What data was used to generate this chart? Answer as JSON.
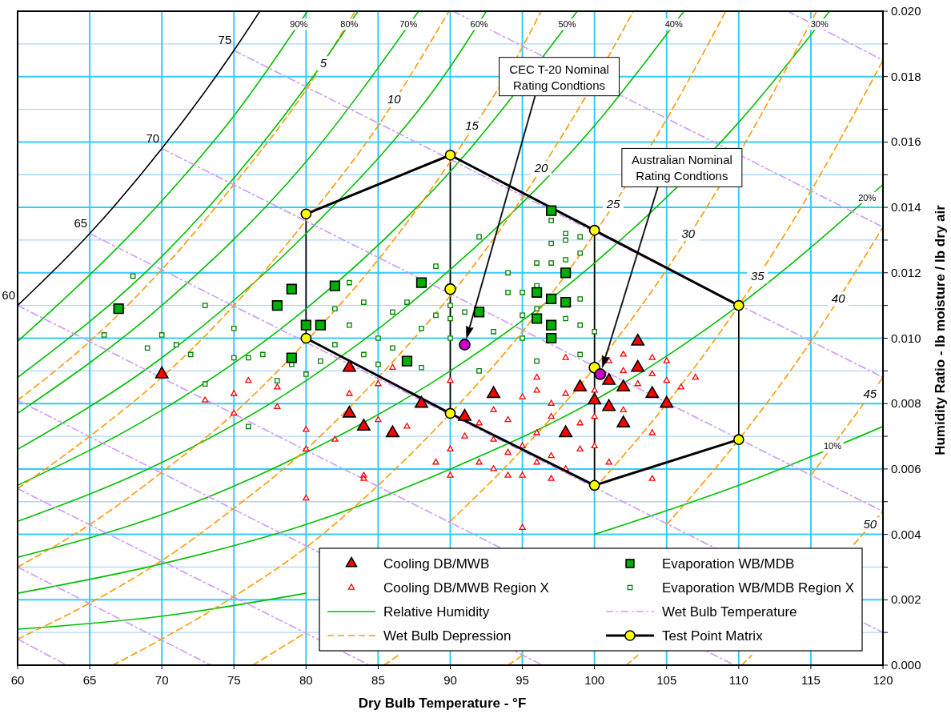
{
  "chart_data": {
    "type": "line",
    "xlabel": "Dry Bulb Temperature - °F",
    "ylabel": "Humidity Ratio - lb moisture / lb dry air",
    "xlim": [
      60,
      120
    ],
    "ylim": [
      0,
      0.02
    ],
    "xticks": [
      60,
      65,
      70,
      75,
      80,
      85,
      90,
      95,
      100,
      105,
      110,
      115,
      120
    ],
    "yticks": [
      {
        "value": 0,
        "label": "0.000"
      },
      {
        "value": 0.001,
        "label": null
      },
      {
        "value": 0.002,
        "label": "0.002"
      },
      {
        "value": 0.003,
        "label": null
      },
      {
        "value": 0.004,
        "label": "0.004"
      },
      {
        "value": 0.005,
        "label": null
      },
      {
        "value": 0.006,
        "label": "0.006"
      },
      {
        "value": 0.007,
        "label": null
      },
      {
        "value": 0.008,
        "label": "0.008"
      },
      {
        "value": 0.009,
        "label": null
      },
      {
        "value": 0.01,
        "label": "0.010"
      },
      {
        "value": 0.011,
        "label": null
      },
      {
        "value": 0.012,
        "label": "0.012"
      },
      {
        "value": 0.013,
        "label": null
      },
      {
        "value": 0.014,
        "label": "0.014"
      },
      {
        "value": 0.015,
        "label": null
      },
      {
        "value": 0.016,
        "label": "0.016"
      },
      {
        "value": 0.017,
        "label": null
      },
      {
        "value": 0.018,
        "label": "0.018"
      },
      {
        "value": 0.019,
        "label": null
      },
      {
        "value": 0.02,
        "label": "0.020"
      }
    ],
    "grid": true,
    "legend": "bottom right",
    "series": [
      {
        "type": "scatter",
        "name": "Cooling DB/MWB",
        "color": "#ff0000",
        "marker": "triangle",
        "x": [
          70,
          83,
          83,
          84,
          86,
          88,
          91,
          93,
          98,
          99,
          100,
          101,
          101,
          102,
          102,
          103,
          103,
          104,
          105
        ],
        "values": [
          0.0089,
          0.0091,
          0.0077,
          0.0073,
          0.0071,
          0.008,
          0.0076,
          0.0083,
          0.0071,
          0.0085,
          0.0081,
          0.0087,
          0.0079,
          0.0085,
          0.0074,
          0.0099,
          0.0091,
          0.0083,
          0.008
        ]
      },
      {
        "type": "scatter",
        "name": "Evaporation WB/MDB",
        "color": "#00b000",
        "marker": "square",
        "x": [
          67,
          78,
          79,
          79,
          80,
          81,
          82,
          87,
          88,
          92,
          96,
          96,
          97,
          97,
          97,
          97,
          98,
          98
        ],
        "values": [
          0.0109,
          0.011,
          0.0115,
          0.0094,
          0.0104,
          0.0104,
          0.0116,
          0.0093,
          0.0117,
          0.0108,
          0.0114,
          0.0106,
          0.0112,
          0.0104,
          0.01,
          0.0139,
          0.012,
          0.0111
        ]
      },
      {
        "type": "scatter",
        "name": "Cooling DB/MWB Region X",
        "color": "#ff0000",
        "marker": "triangle",
        "x": [
          73,
          75,
          75,
          76,
          78,
          78,
          80,
          80,
          80,
          82,
          83,
          84,
          84,
          85,
          85,
          86,
          87,
          88,
          89,
          90,
          90,
          90,
          91,
          92,
          92,
          93,
          93,
          93,
          94,
          94,
          94,
          95,
          95,
          95,
          95,
          96,
          96,
          96,
          96,
          97,
          97,
          97,
          97,
          98,
          98,
          98,
          99,
          99,
          100,
          100,
          100,
          101,
          101,
          102,
          102,
          102,
          103,
          104,
          104,
          104,
          104,
          105,
          105,
          106,
          107
        ],
        "values": [
          0.0081,
          0.0083,
          0.0077,
          0.0087,
          0.0085,
          0.0079,
          0.0072,
          0.0066,
          0.0051,
          0.0069,
          0.0083,
          0.0058,
          0.0057,
          0.0075,
          0.0086,
          0.0091,
          0.0073,
          0.0081,
          0.0062,
          0.0087,
          0.0066,
          0.0058,
          0.007,
          0.0062,
          0.0074,
          0.0078,
          0.0069,
          0.006,
          0.0065,
          0.0058,
          0.0075,
          0.0042,
          0.0058,
          0.0067,
          0.0082,
          0.0062,
          0.0071,
          0.0088,
          0.0084,
          0.008,
          0.0064,
          0.0076,
          0.0057,
          0.0083,
          0.006,
          0.0094,
          0.0066,
          0.0074,
          0.0084,
          0.0076,
          0.0067,
          0.0093,
          0.0062,
          0.0095,
          0.009,
          0.0078,
          0.0086,
          0.0094,
          0.0071,
          0.0057,
          0.0089,
          0.0093,
          0.0087,
          0.0085,
          0.0088
        ]
      },
      {
        "type": "scatter",
        "name": "Evaporation WB/MDB Region X",
        "color": "#008000",
        "marker": "square",
        "x": [
          66,
          68,
          69,
          70,
          71,
          72,
          73,
          73,
          75,
          75,
          76,
          76,
          77,
          78,
          79,
          80,
          81,
          82,
          82,
          83,
          83,
          84,
          84,
          85,
          85,
          86,
          86,
          87,
          88,
          88,
          89,
          89,
          90,
          90,
          90,
          91,
          91,
          92,
          92,
          93,
          94,
          94,
          95,
          95,
          95,
          96,
          96,
          96,
          96,
          97,
          97,
          97,
          98,
          98,
          98,
          98,
          99,
          99,
          99,
          99,
          99,
          100
        ],
        "values": [
          0.0101,
          0.0119,
          0.0097,
          0.0101,
          0.0098,
          0.0095,
          0.011,
          0.0086,
          0.0094,
          0.0103,
          0.0073,
          0.0094,
          0.0095,
          0.0087,
          0.0092,
          0.0089,
          0.0093,
          0.0098,
          0.0109,
          0.0104,
          0.0117,
          0.0111,
          0.0095,
          0.01,
          0.0092,
          0.0097,
          0.0108,
          0.0111,
          0.0103,
          0.0091,
          0.0107,
          0.0122,
          0.01,
          0.0106,
          0.011,
          0.0108,
          0.0099,
          0.0131,
          0.009,
          0.0102,
          0.0114,
          0.012,
          0.0107,
          0.01,
          0.0114,
          0.0093,
          0.0109,
          0.0116,
          0.0123,
          0.0123,
          0.0129,
          0.0136,
          0.0124,
          0.013,
          0.0106,
          0.0132,
          0.0126,
          0.0112,
          0.0104,
          0.0095,
          0.0131,
          0.0102
        ]
      },
      {
        "name": "Relative Humidity",
        "color": "#00c000",
        "line_style": "solid",
        "marker": "none",
        "x": [
          60,
          70,
          80,
          90,
          100,
          110,
          120
        ],
        "values": [
          0.0011,
          0.0015,
          0.0022,
          null,
          0.004,
          0.0055,
          0.0073
        ]
      },
      {
        "name": "Wet Bulb Temperature",
        "color": "#cc99ff",
        "line_style": "dashdot",
        "marker": "none",
        "x": [
          60,
          63.4
        ],
        "values": [
          0.0008,
          0
        ]
      },
      {
        "name": "Wet Bulb Depression",
        "color": "#ff9900",
        "line_style": "dashed",
        "marker": "none",
        "x": [
          60,
          65,
          70,
          75,
          80,
          83.4
        ],
        "values": [
          0.0081,
          0.0099,
          0.0121,
          0.0147,
          0.0176,
          0.02
        ]
      },
      {
        "name": "Test Point Matrix",
        "color": "#000000",
        "line_style": "solid",
        "marker": "circle",
        "colors": [
          "#ffff00",
          "#ffff00",
          "#ffff00",
          "#ffff00"
        ],
        "x": [
          80,
          90,
          100,
          110
        ],
        "values": [
          0.0138,
          0.0156,
          0.0133,
          0.011
        ]
      },
      {
        "color": "#000000",
        "line_style": "solid",
        "marker": "circle",
        "colors": [
          "#ffff00",
          "#ffff00",
          "#ffff00",
          "#ffff00"
        ],
        "x": [
          80,
          90,
          100,
          110
        ],
        "values": [
          0.01,
          0.0077,
          0.0055,
          0.0069
        ]
      },
      {
        "color": "#000000",
        "line_style": "solid",
        "marker": "none",
        "x": [
          80,
          80
        ],
        "values": [
          0.01,
          0.0138
        ]
      },
      {
        "color": "#000000",
        "line_style": "solid",
        "marker": "none",
        "x": [
          90,
          90
        ],
        "values": [
          0.0156,
          0.0077
        ]
      },
      {
        "color": "#000000",
        "line_style": "solid",
        "marker": "none",
        "x": [
          100,
          100
        ],
        "values": [
          0.0133,
          0.0055
        ]
      },
      {
        "color": "#000000",
        "line_style": "solid",
        "marker": "none",
        "x": [
          110,
          110
        ],
        "values": [
          0.011,
          0.0069
        ]
      },
      {
        "type": "scatter",
        "color": "#ffff00",
        "marker": "circle",
        "x": [
          90,
          100
        ],
        "values": [
          0.0115,
          0.0091
        ]
      },
      {
        "color": "#00c000",
        "line_style": "solid",
        "marker": "none",
        "x": [
          60,
          70,
          80,
          90,
          100,
          110,
          120
        ],
        "values": [
          0.0022,
          0.0031,
          0.0043,
          0.006,
          0.0081,
          0.011,
          0.0147
        ]
      },
      {
        "color": "#00c000",
        "line_style": "solid",
        "marker": "none",
        "x": [
          60,
          70,
          80,
          90,
          100,
          110,
          116.3
        ],
        "values": [
          0.0033,
          0.0046,
          0.0065,
          0.009,
          0.0123,
          0.0166,
          0.02
        ]
      },
      {
        "color": "#00c000",
        "line_style": "solid",
        "marker": "none",
        "x": [
          60,
          70,
          80,
          90,
          100,
          106.2
        ],
        "values": [
          0.0044,
          0.0062,
          0.0087,
          0.0121,
          0.0165,
          0.02
        ]
      },
      {
        "color": "#00c000",
        "line_style": "solid",
        "marker": "none",
        "x": [
          60,
          70,
          80,
          90,
          98.8
        ],
        "values": [
          0.0055,
          0.0078,
          0.0109,
          0.0151,
          0.02
        ]
      },
      {
        "color": "#00c000",
        "line_style": "solid",
        "marker": "none",
        "x": [
          60,
          70,
          80,
          90,
          92.5
        ],
        "values": [
          0.0066,
          0.0094,
          0.0132,
          0.0183,
          0.02
        ]
      },
      {
        "color": "#00c000",
        "line_style": "solid",
        "marker": "none",
        "x": [
          60,
          70,
          80,
          87.8
        ],
        "values": [
          0.0077,
          0.011,
          0.0154,
          0.02
        ]
      },
      {
        "color": "#00c000",
        "line_style": "solid",
        "marker": "none",
        "x": [
          60,
          70,
          80,
          83.6
        ],
        "values": [
          0.0088,
          0.0125,
          0.0177,
          0.02
        ]
      },
      {
        "color": "#00c000",
        "line_style": "solid",
        "marker": "none",
        "x": [
          60,
          70,
          75,
          80.1
        ],
        "values": [
          0.0099,
          0.0142,
          0.0168,
          0.02
        ]
      },
      {
        "color": "#cc99ff",
        "line_style": "dashdot",
        "marker": "none",
        "x": [
          60,
          73.4
        ],
        "values": [
          0.003,
          0
        ]
      },
      {
        "color": "#cc99ff",
        "line_style": "dashdot",
        "marker": "none",
        "x": [
          60,
          84.4
        ],
        "values": [
          0.0054,
          0
        ]
      },
      {
        "color": "#cc99ff",
        "line_style": "dashdot",
        "marker": "none",
        "x": [
          60,
          96.4
        ],
        "values": [
          0.0081,
          0
        ]
      },
      {
        "color": "#cc99ff",
        "line_style": "dashdot",
        "marker": "none",
        "x": [
          60,
          109.7
        ],
        "values": [
          0.011,
          0
        ]
      },
      {
        "color": "#cc99ff",
        "line_style": "dashdot",
        "marker": "none",
        "x": [
          65,
          120
        ],
        "values": [
          0.0132,
          0.001
        ]
      },
      {
        "color": "#cc99ff",
        "line_style": "dashdot",
        "marker": "none",
        "x": [
          70,
          120
        ],
        "values": [
          0.0158,
          0.0047
        ]
      },
      {
        "color": "#cc99ff",
        "line_style": "dashdot",
        "marker": "none",
        "x": [
          75,
          120
        ],
        "values": [
          0.0188,
          0.0088
        ]
      },
      {
        "color": "#cc99ff",
        "line_style": "dashdot",
        "marker": "none",
        "x": [
          90.2,
          120
        ],
        "values": [
          0.02,
          0.0134
        ]
      },
      {
        "color": "#cc99ff",
        "line_style": "dashdot",
        "marker": "none",
        "x": [
          113.4,
          120
        ],
        "values": [
          0.02,
          0.0185
        ]
      },
      {
        "color": "#ff9900",
        "line_style": "dashed",
        "marker": "none",
        "x": [
          60,
          65,
          70,
          75,
          80,
          85,
          89.9
        ],
        "values": [
          0.0054,
          0.007,
          0.0088,
          0.011,
          0.0136,
          0.0165,
          0.02
        ]
      },
      {
        "color": "#ff9900",
        "line_style": "dashed",
        "marker": "none",
        "x": [
          60,
          65,
          70,
          75,
          80,
          85,
          90,
          95,
          96.3
        ],
        "values": [
          0.003,
          0.0043,
          0.0059,
          0.0077,
          0.0099,
          0.0124,
          0.0154,
          0.0189,
          0.02
        ]
      },
      {
        "color": "#ff9900",
        "line_style": "dashed",
        "marker": "none",
        "x": [
          60,
          65,
          70,
          75,
          80,
          85,
          90,
          95,
          99,
          102.7
        ],
        "values": [
          0.0008,
          0.0019,
          0.0032,
          0.0048,
          0.0066,
          0.0088,
          0.0113,
          0.0143,
          0.0171,
          0.02
        ]
      },
      {
        "color": "#ff9900",
        "line_style": "dashed",
        "marker": "none",
        "x": [
          66.6,
          70,
          75,
          80,
          85,
          90,
          95,
          100,
          105,
          109.1
        ],
        "values": [
          0,
          0.0008,
          0.0021,
          0.0036,
          0.0055,
          0.0077,
          0.0102,
          0.0132,
          0.0167,
          0.02
        ]
      },
      {
        "color": "#ff9900",
        "line_style": "dashed",
        "marker": "none",
        "x": [
          76.3,
          80,
          85,
          90,
          95,
          100,
          105,
          111,
          115.4
        ],
        "values": [
          0,
          0.001,
          null,
          0.0044,
          0.0066,
          0.0091,
          0.0121,
          0.0164,
          0.02
        ]
      },
      {
        "color": "#ff9900",
        "line_style": "dashed",
        "marker": "none",
        "x": [
          85.4,
          86.4,
          95,
          100,
          105,
          110,
          115,
          120
        ],
        "values": [
          0,
          0.0003,
          null,
          0.0054,
          0.008,
          0.011,
          0.0145,
          0.0185
        ]
      },
      {
        "color": "#ff9900",
        "line_style": "dashed",
        "marker": "none",
        "x": [
          94,
          95,
          100,
          105,
          110,
          115,
          120
        ],
        "values": [
          0,
          0.0003,
          null,
          0.0043,
          0.0069,
          0.0099,
          0.0134
        ]
      },
      {
        "color": "#ff9900",
        "line_style": "dashed",
        "marker": "none",
        "x": [
          102.2,
          103,
          110,
          115,
          120
        ],
        "values": [
          0,
          0.0003,
          null,
          0.0058,
          0.0088
        ]
      },
      {
        "color": "#ff9900",
        "line_style": "dashed",
        "marker": "none",
        "x": [
          110.2,
          110.9,
          115,
          118,
          120
        ],
        "values": [
          0,
          0.0003,
          null,
          0.0037,
          0.0047
        ]
      },
      {
        "color": "#000000",
        "line_style": "solid",
        "marker": "none",
        "x": [
          60,
          65,
          70,
          75,
          76.8
        ],
        "values": [
          0.011,
          0.0132,
          0.0158,
          0.0188,
          0.02
        ]
      },
      {
        "type": "scatter",
        "color": "#cc00cc",
        "marker": "circle",
        "x": [
          91
        ],
        "values": [
          0.0098
        ]
      },
      {
        "type": "scatter",
        "color": "#cc00cc",
        "marker": "circle",
        "x": [
          100.4
        ],
        "values": [
          0.0089
        ]
      }
    ],
    "annotations": [
      "CEC T-20 Nominal\nRating Condtions",
      "Australian Nominal\nRating Condtions",
      {
        "text": "60",
        "x": 60,
        "y": 0.011
      },
      {
        "text": "65",
        "x": 65,
        "y": 0.0132
      },
      {
        "text": "70",
        "x": 70,
        "y": 0.0158
      },
      {
        "text": "75",
        "x": 75,
        "y": 0.0188
      },
      {
        "text": "90%",
        "x": 79.5,
        "y": 0.0196
      },
      {
        "text": "80%",
        "x": 83,
        "y": 0.0196
      },
      {
        "text": "70%",
        "x": 87.1,
        "y": 0.0196
      },
      {
        "text": "60%",
        "x": 92,
        "y": 0.0196
      },
      {
        "text": "50%",
        "x": 98.1,
        "y": 0.0196
      },
      {
        "text": "40%",
        "x": 105.5,
        "y": 0.0196
      },
      {
        "text": "30%",
        "x": 115.6,
        "y": 0.0196
      },
      {
        "text": "20%",
        "x": 118.9,
        "y": 0.0143
      },
      {
        "text": "10%",
        "x": 116.5,
        "y": 0.0067
      },
      {
        "text": "5",
        "x": 81.2,
        "y": 0.0184
      },
      {
        "text": "10",
        "x": 86.1,
        "y": 0.0173
      },
      {
        "text": "15",
        "x": 91.5,
        "y": 0.0165
      },
      {
        "text": "20",
        "x": 96.3,
        "y": 0.0152
      },
      {
        "text": "25",
        "x": 101.3,
        "y": 0.0141
      },
      {
        "text": "30",
        "x": 106.5,
        "y": 0.0132
      },
      {
        "text": "35",
        "x": 111.3,
        "y": 0.0119
      },
      {
        "text": "40",
        "x": 116.9,
        "y": 0.0112
      },
      {
        "text": "45",
        "x": 119.1,
        "y": 0.0083
      },
      {
        "text": "50",
        "x": 119.1,
        "y": 0.0043
      }
    ]
  }
}
